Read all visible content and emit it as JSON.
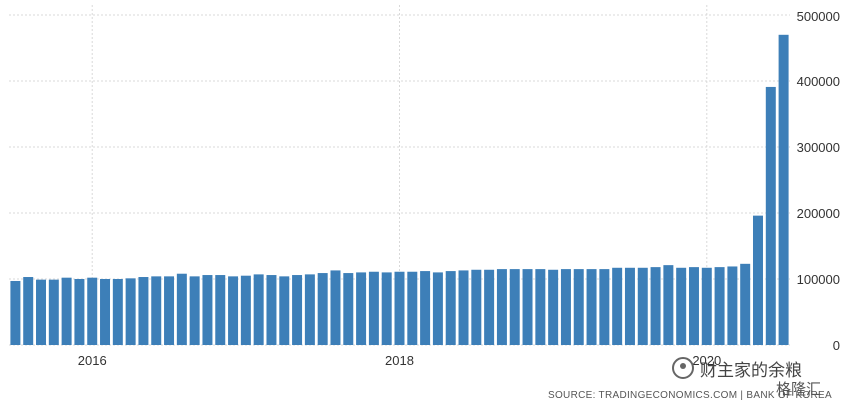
{
  "chart_data": {
    "type": "bar",
    "title": "",
    "xlabel": "",
    "ylabel": "",
    "x_start": "2015-07",
    "x_end": "2020-05",
    "x_ticks": [
      "2016",
      "2018",
      "2020"
    ],
    "y_ticks": [
      "0",
      "100000",
      "200000",
      "300000",
      "400000",
      "500000"
    ],
    "ylim": [
      0,
      500000
    ],
    "grid": true,
    "bar_color": "#3d7fb8",
    "series": [
      {
        "values": [
          97000,
          103000,
          99000,
          99000,
          102000,
          100000,
          102000,
          100000,
          100000,
          101000,
          103000,
          104000,
          104000,
          108000,
          104000,
          106000,
          106000,
          104000,
          105000,
          107000,
          106000,
          104000,
          106000,
          107000,
          109000,
          113000,
          109000,
          110000,
          111000,
          110000,
          111000,
          111000,
          112000,
          110000,
          112000,
          113000,
          114000,
          114000,
          115000,
          115000,
          115000,
          115000,
          114000,
          115000,
          115000,
          115000,
          115000,
          117000,
          117000,
          117000,
          118000,
          121000,
          117000,
          118000,
          117000,
          118000,
          119000,
          123000,
          196000,
          391000,
          470000
        ]
      }
    ]
  },
  "source": "SOURCE: TRADINGECONOMICS.COM  |  BANK OF KOREA",
  "watermark": "财主家的余粮",
  "logo2": "格隆汇"
}
